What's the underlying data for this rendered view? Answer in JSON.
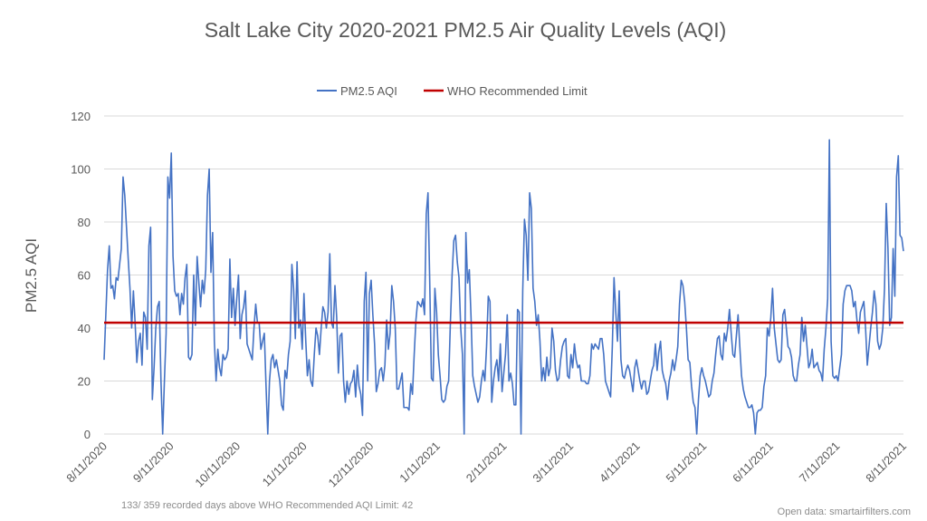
{
  "chart_data": {
    "type": "line",
    "title": "Salt Lake City 2020-2021 PM2.5 Air Quality Levels (AQI)",
    "ylabel": "PM2.5 AQI",
    "xlabel": "",
    "ylim": [
      0,
      120
    ],
    "y_ticks": [
      "0",
      "20",
      "40",
      "60",
      "80",
      "100",
      "120"
    ],
    "grid": true,
    "legend_position": "top",
    "x_ticks": [
      "8/11/2020",
      "9/11/2020",
      "10/11/2020",
      "11/11/2020",
      "12/11/2020",
      "1/11/2021",
      "2/11/2021",
      "3/11/2021",
      "4/11/2021",
      "5/11/2021",
      "6/11/2021",
      "7/11/2021",
      "8/11/2021"
    ],
    "series": [
      {
        "name": "PM2.5 AQI",
        "color": "#4472c4",
        "x_start": "2020-08-11",
        "values": [
          28,
          45,
          62,
          71,
          55,
          56,
          51,
          59,
          58,
          64,
          70,
          97,
          90,
          78,
          66,
          55,
          40,
          54,
          42,
          27,
          35,
          38,
          26,
          46,
          44,
          32,
          71,
          78,
          13,
          25,
          40,
          48,
          50,
          20,
          0,
          20,
          38,
          97,
          89,
          106,
          67,
          54,
          52,
          53,
          45,
          53,
          49,
          59,
          64,
          29,
          28,
          30,
          60,
          41,
          67,
          57,
          48,
          58,
          53,
          62,
          90,
          100,
          61,
          76,
          35,
          20,
          32,
          25,
          22,
          30,
          28,
          29,
          32,
          66,
          44,
          55,
          41,
          51,
          60,
          36,
          45,
          48,
          54,
          34,
          32,
          30,
          28,
          40,
          49,
          42,
          42,
          32,
          35,
          38,
          18,
          0,
          20,
          28,
          30,
          25,
          28,
          24,
          20,
          11,
          9,
          24,
          21,
          30,
          35,
          64,
          55,
          36,
          65,
          40,
          43,
          32,
          53,
          36,
          22,
          28,
          20,
          18,
          30,
          40,
          37,
          30,
          40,
          48,
          46,
          40,
          46,
          68,
          42,
          40,
          56,
          44,
          23,
          37,
          38,
          20,
          12,
          20,
          15,
          19,
          20,
          24,
          14,
          26,
          18,
          15,
          7,
          50,
          61,
          20,
          53,
          58,
          45,
          34,
          16,
          19,
          24,
          25,
          20,
          26,
          43,
          32,
          38,
          56,
          50,
          40,
          17,
          17,
          20,
          23,
          10,
          10,
          10,
          9,
          19,
          15,
          30,
          43,
          50,
          49,
          48,
          51,
          45,
          83,
          91,
          58,
          21,
          20,
          55,
          46,
          30,
          22,
          13,
          12,
          13,
          18,
          20,
          42,
          60,
          73,
          75,
          65,
          59,
          40,
          30,
          0,
          76,
          57,
          62,
          44,
          22,
          18,
          15,
          12,
          14,
          20,
          24,
          20,
          33,
          52,
          50,
          12,
          20,
          25,
          28,
          20,
          34,
          16,
          23,
          30,
          45,
          20,
          23,
          19,
          11,
          11,
          47,
          46,
          0,
          54,
          81,
          75,
          58,
          91,
          85,
          55,
          50,
          41,
          45,
          35,
          20,
          25,
          20,
          29,
          22,
          25,
          40,
          35,
          24,
          20,
          21,
          28,
          33,
          35,
          36,
          22,
          21,
          30,
          25,
          34,
          28,
          25,
          26,
          20,
          20,
          20,
          19,
          19,
          22,
          34,
          32,
          34,
          33,
          32,
          36,
          36,
          30,
          20,
          18,
          16,
          14,
          33,
          59,
          46,
          35,
          54,
          28,
          22,
          21,
          24,
          26,
          24,
          20,
          16,
          25,
          28,
          24,
          20,
          17,
          20,
          20,
          15,
          16,
          20,
          24,
          26,
          34,
          24,
          31,
          35,
          24,
          21,
          19,
          13,
          20,
          23,
          28,
          24,
          28,
          33,
          49,
          58,
          56,
          50,
          40,
          28,
          27,
          18,
          12,
          10,
          0,
          13,
          22,
          25,
          22,
          20,
          17,
          14,
          15,
          20,
          23,
          30,
          36,
          37,
          30,
          28,
          38,
          35,
          40,
          47,
          38,
          30,
          29,
          37,
          45,
          33,
          22,
          17,
          14,
          12,
          10,
          10,
          11,
          8,
          0,
          8,
          9,
          9,
          10,
          18,
          22,
          40,
          37,
          44,
          55,
          40,
          34,
          28,
          27,
          28,
          45,
          47,
          40,
          33,
          32,
          29,
          22,
          20,
          20,
          26,
          30,
          44,
          35,
          41,
          33,
          25,
          27,
          32,
          25,
          26,
          27,
          24,
          23,
          20,
          32,
          40,
          51,
          111,
          35,
          22,
          21,
          22,
          20,
          25,
          30,
          49,
          54,
          56,
          56,
          56,
          54,
          48,
          50,
          43,
          38,
          46,
          48,
          50,
          40,
          26,
          33,
          40,
          46,
          54,
          49,
          35,
          32,
          34,
          40,
          55,
          87,
          70,
          41,
          44,
          70,
          52,
          97,
          105,
          75,
          74,
          69
        ]
      },
      {
        "name": "WHO Recommended Limit",
        "color": "#c00000",
        "values": [
          42
        ]
      }
    ]
  },
  "footer": {
    "left_note": "133/ 359 recorded days above WHO Recommended AQI Limit: 42",
    "right_note": "Open data: smartairfilters.com"
  }
}
